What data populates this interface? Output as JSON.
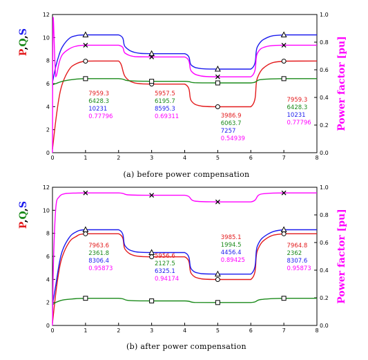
{
  "colors": {
    "P": "#e31a1c",
    "Q": "#1a8a1a",
    "S": "#1a1aee",
    "PF": "#ff00ff",
    "axis": "#000000"
  },
  "chart_data": [
    {
      "type": "line",
      "caption": "(a) before power compensation",
      "ylabel_left": "P,Q,S",
      "ylabel_right": "Power factor [pu]",
      "xlim": [
        0,
        8
      ],
      "ylim_left": [
        0,
        12
      ],
      "ylim_right": [
        0,
        1.0
      ],
      "x_ticks": [
        "0",
        "1",
        "2",
        "3",
        "4",
        "5",
        "6",
        "7",
        "8"
      ],
      "y_ticks_left": [
        "0",
        "2",
        "4",
        "6",
        "8",
        "10",
        "12"
      ],
      "y_ticks_right": [
        "0.0",
        "0.2",
        "0.4",
        "0.6",
        "0.8",
        "1.0"
      ],
      "grid": false,
      "series": [
        {
          "name": "P",
          "axis": "left",
          "marker": "circle",
          "marker_x": [
            1,
            3,
            5,
            7
          ],
          "x": [
            0,
            0.1,
            0.2,
            0.3,
            0.5,
            0.7,
            1,
            1.5,
            2,
            2.2,
            2.5,
            3,
            4,
            4.2,
            4.5,
            5,
            6,
            6.2,
            6.5,
            7,
            8
          ],
          "y": [
            0.3,
            2.8,
            4.8,
            6.0,
            7.2,
            7.7,
            7.95,
            7.96,
            7.96,
            6.6,
            6.05,
            5.96,
            5.96,
            4.5,
            4.05,
            3.99,
            3.99,
            6.5,
            7.6,
            7.95,
            7.96
          ]
        },
        {
          "name": "Q",
          "axis": "left",
          "marker": "square",
          "marker_x": [
            1,
            3,
            5,
            7
          ],
          "x": [
            0,
            0.1,
            0.3,
            0.6,
            1,
            2,
            2.3,
            3,
            4,
            4.3,
            5,
            6,
            6.3,
            7,
            8
          ],
          "y": [
            5.9,
            6.0,
            6.2,
            6.35,
            6.43,
            6.43,
            6.25,
            6.2,
            6.2,
            6.08,
            6.06,
            6.06,
            6.35,
            6.43,
            6.43
          ]
        },
        {
          "name": "S",
          "axis": "left",
          "marker": "triangle",
          "marker_x": [
            1,
            3,
            5,
            7
          ],
          "x": [
            0,
            0.1,
            0.2,
            0.3,
            0.5,
            0.7,
            1,
            2,
            2.2,
            2.5,
            3,
            4,
            4.2,
            4.5,
            5,
            6,
            6.2,
            6.5,
            7,
            8
          ],
          "y": [
            6.1,
            7.5,
            8.5,
            9.2,
            9.9,
            10.15,
            10.23,
            10.23,
            9.2,
            8.7,
            8.6,
            8.6,
            7.6,
            7.3,
            7.26,
            7.26,
            9.2,
            10.0,
            10.23,
            10.23
          ]
        },
        {
          "name": "Power factor",
          "axis": "right",
          "marker": "cross",
          "marker_x": [
            1,
            3,
            5,
            7
          ],
          "x": [
            0,
            0.02,
            0.1,
            0.2,
            0.3,
            0.5,
            0.7,
            1,
            2,
            2.2,
            2.5,
            3,
            4,
            4.2,
            4.5,
            5,
            6,
            6.2,
            6.5,
            7,
            8
          ],
          "y": [
            0.0,
            0.98,
            0.55,
            0.65,
            0.71,
            0.75,
            0.77,
            0.778,
            0.778,
            0.72,
            0.695,
            0.693,
            0.693,
            0.59,
            0.555,
            0.549,
            0.549,
            0.72,
            0.77,
            0.778,
            0.778
          ]
        }
      ],
      "annotations": [
        {
          "x": 1.05,
          "values": [
            "7959.3",
            "6428.3",
            "10231",
            "0.77796"
          ]
        },
        {
          "x": 3.05,
          "values": [
            "5957.5",
            "6195.7",
            "8595.3",
            "0.69311"
          ]
        },
        {
          "x": 5.05,
          "values": [
            "3986.9",
            "6063.7",
            "7257",
            "0.54939"
          ]
        },
        {
          "x": 7.05,
          "values": [
            "7959.3",
            "6428.3",
            "10231",
            "0.77796"
          ]
        }
      ],
      "annotation_rows_y": [
        [
          1.3,
          1.3,
          1.3,
          1.3
        ]
      ],
      "annotation_start_left": [
        6.9,
        6.9,
        4.8,
        6.9
      ]
    },
    {
      "type": "line",
      "caption": "(b) after power compensation",
      "ylabel_left": "P,Q,S",
      "ylabel_right": "Power factor [pu]",
      "xlim": [
        0,
        8
      ],
      "ylim_left": [
        0,
        12
      ],
      "ylim_right": [
        0,
        1.0
      ],
      "x_ticks": [
        "0",
        "1",
        "2",
        "3",
        "4",
        "5",
        "6",
        "7",
        "8"
      ],
      "y_ticks_left": [
        "0",
        "2",
        "4",
        "6",
        "8",
        "10",
        "12"
      ],
      "y_ticks_right": [
        "0.0",
        "0.2",
        "0.4",
        "0.6",
        "0.8",
        "1.0"
      ],
      "grid": false,
      "series": [
        {
          "name": "P",
          "axis": "left",
          "marker": "circle",
          "marker_x": [
            1,
            3,
            5,
            7
          ],
          "x": [
            0,
            0.1,
            0.2,
            0.3,
            0.5,
            0.7,
            1,
            2,
            2.2,
            2.5,
            3,
            4,
            4.2,
            4.5,
            5,
            6,
            6.2,
            6.5,
            7,
            8
          ],
          "y": [
            0.2,
            2.8,
            4.8,
            6.0,
            7.2,
            7.7,
            7.96,
            7.96,
            6.6,
            6.05,
            5.96,
            5.96,
            4.5,
            4.05,
            3.99,
            3.99,
            6.5,
            7.6,
            7.96,
            7.96
          ]
        },
        {
          "name": "Q",
          "axis": "left",
          "marker": "square",
          "marker_x": [
            1,
            3,
            5,
            7
          ],
          "x": [
            0,
            0.1,
            0.3,
            0.6,
            1,
            2,
            2.3,
            3,
            4,
            4.3,
            5,
            6,
            6.3,
            7,
            8
          ],
          "y": [
            1.8,
            2.0,
            2.2,
            2.3,
            2.36,
            2.36,
            2.17,
            2.13,
            2.13,
            2.0,
            1.99,
            1.99,
            2.25,
            2.36,
            2.36
          ]
        },
        {
          "name": "S",
          "axis": "left",
          "marker": "triangle",
          "marker_x": [
            1,
            3,
            5,
            7
          ],
          "x": [
            0,
            0.1,
            0.2,
            0.3,
            0.5,
            0.7,
            1,
            2,
            2.2,
            2.5,
            3,
            4,
            4.2,
            4.5,
            5,
            6,
            6.2,
            6.5,
            7,
            8
          ],
          "y": [
            1.8,
            3.5,
            5.3,
            6.5,
            7.6,
            8.1,
            8.31,
            8.31,
            6.9,
            6.4,
            6.33,
            6.33,
            4.9,
            4.5,
            4.46,
            4.46,
            6.9,
            7.9,
            8.31,
            8.31
          ]
        },
        {
          "name": "Power factor",
          "axis": "right",
          "marker": "cross",
          "marker_x": [
            1,
            3,
            5,
            7
          ],
          "x": [
            0,
            0.03,
            0.1,
            0.2,
            0.4,
            0.7,
            1,
            2,
            2.3,
            3,
            4,
            4.3,
            5,
            6,
            6.3,
            7,
            8
          ],
          "y": [
            0.0,
            0.45,
            0.85,
            0.93,
            0.955,
            0.958,
            0.959,
            0.959,
            0.945,
            0.942,
            0.942,
            0.9,
            0.894,
            0.894,
            0.95,
            0.959,
            0.959
          ]
        }
      ],
      "annotations": [
        {
          "x": 1.05,
          "values": [
            "7963.6",
            "2361.8",
            "8306.4",
            "0.95873"
          ]
        },
        {
          "x": 3.05,
          "values": [
            "5956.6",
            "2127.5",
            "6325.1",
            "0.94174"
          ]
        },
        {
          "x": 5.05,
          "values": [
            "3985.1",
            "1994.5",
            "4456.4",
            "0.89425"
          ]
        },
        {
          "x": 7.05,
          "values": [
            "7964.8",
            "2362",
            "8307.6",
            "0.95873"
          ]
        }
      ],
      "annotation_start_left": [
        7.1,
        5.1,
        9.0,
        7.1
      ]
    }
  ]
}
